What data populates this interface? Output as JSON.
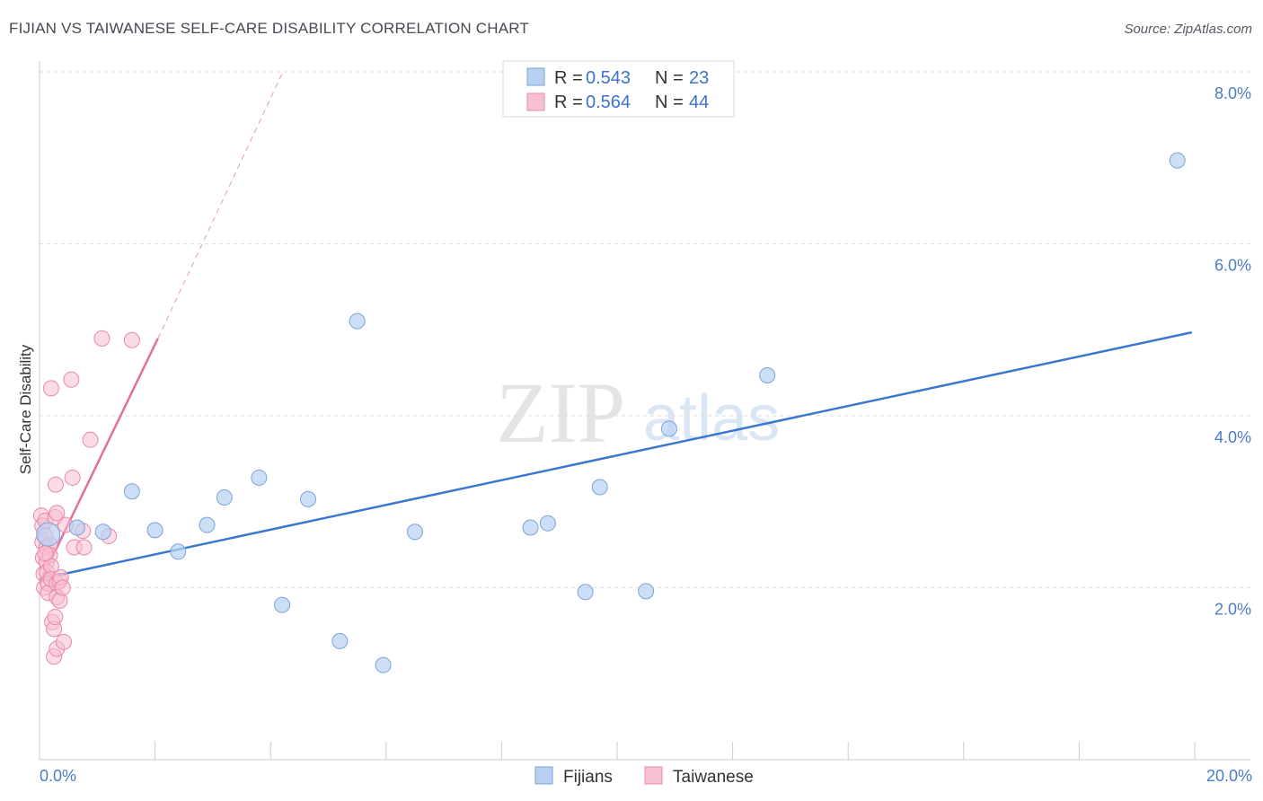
{
  "title": "FIJIAN VS TAIWANESE SELF-CARE DISABILITY CORRELATION CHART",
  "source": "Source: ZipAtlas.com",
  "watermark": {
    "zip": "ZIP",
    "atlas": "atlas"
  },
  "colors": {
    "fijians_fill": "#b8d1f3",
    "fijians_stroke": "#7aa3da",
    "fijians_line": "#3a78d0",
    "taiwanese_fill": "#f7c0d2",
    "taiwanese_stroke": "#e888a8",
    "taiwanese_line": "#e0709a",
    "tick_label": "#4a7cc9",
    "grid": "#dddddd"
  },
  "legend": {
    "rows": [
      {
        "r_label": "R =",
        "r_value": "0.543",
        "n_label": "N =",
        "n_value": "23"
      },
      {
        "r_label": "R =",
        "r_value": "0.564",
        "n_label": "N =",
        "n_value": "44"
      }
    ]
  },
  "chart_data": {
    "type": "scatter",
    "title": "FIJIAN VS TAIWANESE SELF-CARE DISABILITY CORRELATION CHART",
    "xlabel": "",
    "ylabel": "Self-Care Disability",
    "xlim": [
      0,
      20
    ],
    "ylim": [
      0,
      8
    ],
    "x_tick_labels": [
      "0.0%",
      "20.0%"
    ],
    "y_ticks": [
      2,
      4,
      6,
      8
    ],
    "y_tick_labels": [
      "2.0%",
      "4.0%",
      "6.0%",
      "8.0%"
    ],
    "grid": true,
    "legend_position": "bottom-center",
    "series": [
      {
        "name": "Fijians",
        "r": 0.543,
        "n": 23,
        "trend": {
          "x0": 0.0,
          "y0": 2.1,
          "x1": 19.95,
          "y1": 4.97,
          "extrapolated": false
        },
        "points": [
          [
            0.15,
            2.62
          ],
          [
            0.65,
            2.7
          ],
          [
            1.1,
            2.65
          ],
          [
            1.6,
            3.12
          ],
          [
            2.0,
            2.67
          ],
          [
            2.4,
            2.42
          ],
          [
            2.9,
            2.73
          ],
          [
            3.2,
            3.05
          ],
          [
            3.8,
            3.28
          ],
          [
            4.2,
            1.8
          ],
          [
            4.65,
            3.03
          ],
          [
            5.2,
            1.38
          ],
          [
            5.5,
            5.1
          ],
          [
            5.95,
            1.1
          ],
          [
            6.5,
            2.65
          ],
          [
            8.5,
            2.7
          ],
          [
            8.8,
            2.75
          ],
          [
            9.45,
            1.95
          ],
          [
            9.7,
            3.17
          ],
          [
            10.5,
            1.96
          ],
          [
            10.9,
            3.85
          ],
          [
            12.6,
            4.47
          ],
          [
            19.7,
            6.97
          ]
        ]
      },
      {
        "name": "Taiwanese",
        "r": 0.564,
        "n": 44,
        "trend": {
          "x0": 0.0,
          "y0": 2.05,
          "x1": 2.05,
          "y1": 4.9,
          "x_ext": 4.2,
          "y_ext": 7.98,
          "extrapolated": true
        },
        "points": [
          [
            0.03,
            2.84
          ],
          [
            0.05,
            2.72
          ],
          [
            0.05,
            2.53
          ],
          [
            0.06,
            2.35
          ],
          [
            0.07,
            2.16
          ],
          [
            0.08,
            2.0
          ],
          [
            0.1,
            2.78
          ],
          [
            0.1,
            2.6
          ],
          [
            0.12,
            2.47
          ],
          [
            0.12,
            2.3
          ],
          [
            0.13,
            2.18
          ],
          [
            0.15,
            2.05
          ],
          [
            0.15,
            1.94
          ],
          [
            0.18,
            2.5
          ],
          [
            0.18,
            2.38
          ],
          [
            0.2,
            2.25
          ],
          [
            0.2,
            2.1
          ],
          [
            0.2,
            4.32
          ],
          [
            0.22,
            1.6
          ],
          [
            0.25,
            1.52
          ],
          [
            0.25,
            1.2
          ],
          [
            0.27,
            1.66
          ],
          [
            0.27,
            2.82
          ],
          [
            0.28,
            3.2
          ],
          [
            0.3,
            2.05
          ],
          [
            0.3,
            1.89
          ],
          [
            0.3,
            1.29
          ],
          [
            0.3,
            2.87
          ],
          [
            0.35,
            1.85
          ],
          [
            0.35,
            2.08
          ],
          [
            0.37,
            2.12
          ],
          [
            0.4,
            2.0
          ],
          [
            0.42,
            1.37
          ],
          [
            0.45,
            2.73
          ],
          [
            0.55,
            4.42
          ],
          [
            0.57,
            3.28
          ],
          [
            0.6,
            2.47
          ],
          [
            0.75,
            2.66
          ],
          [
            0.77,
            2.47
          ],
          [
            0.88,
            3.72
          ],
          [
            1.08,
            4.9
          ],
          [
            1.2,
            2.6
          ],
          [
            1.6,
            4.88
          ],
          [
            0.1,
            2.4
          ]
        ]
      }
    ]
  }
}
